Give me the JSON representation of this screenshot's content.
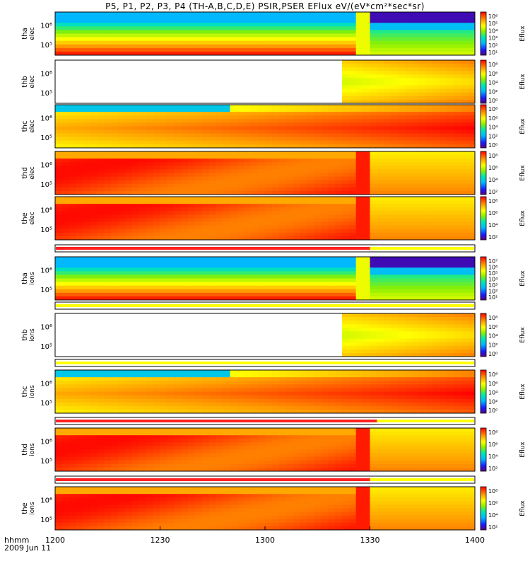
{
  "title": "P5, P1, P2, P3, P4 (TH-A,B,C,D,E) PSIR,PSER EFlux eV/(eV*cm²*sec*sr)",
  "x_axis": {
    "label_line1": "hhmm",
    "label_line2": "2009 Jun 11",
    "ticks": [
      "1200",
      "1230",
      "1300",
      "1330",
      "1400"
    ],
    "tick_values_min": [
      0,
      30,
      60,
      90,
      120
    ]
  },
  "colorbar_label": "Eflux",
  "chart_data": {
    "type": "heatmap",
    "x_range_minutes_after_1200": [
      0,
      120
    ],
    "panels": [
      {
        "id": "tha-elec",
        "ylabel_top": "tha",
        "ylabel_bottom": "elec",
        "ytick_labels": [
          "10⁶",
          "10⁵"
        ],
        "cbar_ticks": [
          "10⁶",
          "10⁵",
          "10⁴",
          "10³",
          "10²",
          "10¹"
        ],
        "data_start_min": 0,
        "data_end_min": 120,
        "gap_start_min": 86,
        "gap_end_min": 90
      },
      {
        "id": "thb-elec",
        "ylabel_top": "thb",
        "ylabel_bottom": "elec",
        "ytick_labels": [
          "10⁶",
          "10⁵"
        ],
        "cbar_ticks": [
          "10⁸",
          "10⁶",
          "10⁴",
          "10²",
          "10⁰"
        ],
        "data_start_min": 82,
        "data_end_min": 120
      },
      {
        "id": "thc-elec",
        "ylabel_top": "thc",
        "ylabel_bottom": "elec",
        "ytick_labels": [
          "10⁶",
          "10⁵"
        ],
        "cbar_ticks": [
          "10⁸",
          "10⁶",
          "10⁴",
          "10²",
          "10⁰"
        ],
        "data_start_min": 0,
        "data_end_min": 120
      },
      {
        "id": "thd-elec",
        "ylabel_top": "thd",
        "ylabel_bottom": "elec",
        "ytick_labels": [
          "10⁶",
          "10⁵"
        ],
        "cbar_ticks": [
          "10⁸",
          "10⁶",
          "10⁴",
          "10²"
        ],
        "data_start_min": 0,
        "data_end_min": 120,
        "transition_min": 90
      },
      {
        "id": "the-elec",
        "ylabel_top": "the",
        "ylabel_bottom": "elec",
        "ytick_labels": [
          "10⁶",
          "10⁵"
        ],
        "cbar_ticks": [
          "10⁸",
          "10⁶",
          "10⁴",
          "10²"
        ],
        "data_start_min": 0,
        "data_end_min": 120,
        "transition_min": 90
      },
      {
        "id": "tha-ions",
        "ylabel_top": "tha",
        "ylabel_bottom": "ions",
        "ytick_labels": [
          "10⁶",
          "10⁵"
        ],
        "cbar_ticks": [
          "10⁷",
          "10⁶",
          "10⁵",
          "10⁴",
          "10³",
          "10²",
          "10¹"
        ],
        "data_start_min": 0,
        "data_end_min": 120,
        "gap_start_min": 86,
        "gap_end_min": 90
      },
      {
        "id": "thb-ions",
        "ylabel_top": "thb",
        "ylabel_bottom": "ions",
        "ytick_labels": [
          "10⁶",
          "10⁵"
        ],
        "cbar_ticks": [
          "10⁸",
          "10⁶",
          "10⁴",
          "10²",
          "10⁰"
        ],
        "data_start_min": 82,
        "data_end_min": 120
      },
      {
        "id": "thc-ions",
        "ylabel_top": "thc",
        "ylabel_bottom": "ions",
        "ytick_labels": [
          "10⁶",
          "10⁵"
        ],
        "cbar_ticks": [
          "10⁸",
          "10⁶",
          "10⁴",
          "10²",
          "10⁰"
        ],
        "data_start_min": 0,
        "data_end_min": 120
      },
      {
        "id": "thd-ions",
        "ylabel_top": "thd",
        "ylabel_bottom": "ions",
        "ytick_labels": [
          "10⁶",
          "10⁵"
        ],
        "cbar_ticks": [
          "10⁸",
          "10⁶",
          "10⁴",
          "10²"
        ],
        "data_start_min": 0,
        "data_end_min": 120,
        "transition_min": 90
      },
      {
        "id": "the-ions",
        "ylabel_top": "the",
        "ylabel_bottom": "ions",
        "ytick_labels": [
          "10⁶",
          "10⁵"
        ],
        "cbar_ticks": [
          "10⁸",
          "10⁶",
          "10⁴",
          "10²"
        ],
        "data_start_min": 0,
        "data_end_min": 120,
        "transition_min": 90
      }
    ],
    "mode_bars": [
      {
        "id": "bar-1",
        "red_end_min": 90
      },
      {
        "id": "bar-2",
        "red_end_min": 0
      },
      {
        "id": "bar-3",
        "red_end_min": 0
      },
      {
        "id": "bar-4",
        "red_end_min": 92
      },
      {
        "id": "bar-5",
        "red_end_min": 90
      }
    ],
    "colors": {
      "bar_red": "#ff2020",
      "bar_yellow": "#ffff00"
    }
  }
}
